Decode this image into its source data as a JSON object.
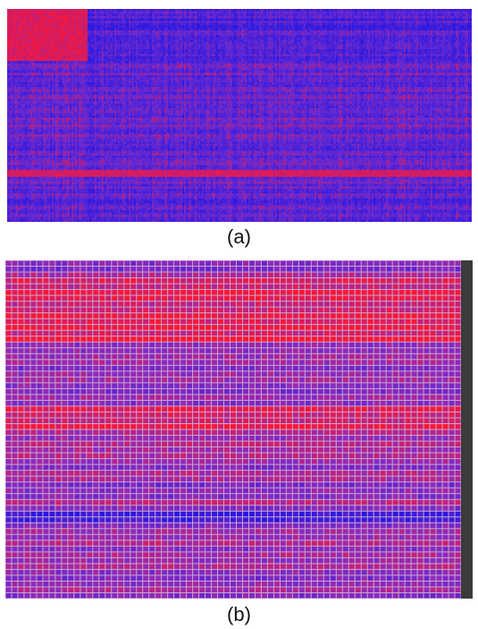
{
  "chart_data": [
    {
      "type": "heatmap",
      "panel_label": "(a)",
      "rows": 90,
      "columns": 260,
      "colors": {
        "low": "#2a18e0",
        "mid": "#6a2ad0",
        "high": "#ff1633"
      },
      "grid": false,
      "row_labels_visible": false
    },
    {
      "type": "heatmap",
      "panel_label": "(b)",
      "rows": 58,
      "columns": 73,
      "colors": {
        "low": "#2a18e0",
        "mid": "#8a2ac0",
        "high": "#ff1633",
        "grid": "#c9a6cf",
        "label_strip": "#3b3b3b"
      },
      "grid": true,
      "row_labels_visible": true
    }
  ]
}
